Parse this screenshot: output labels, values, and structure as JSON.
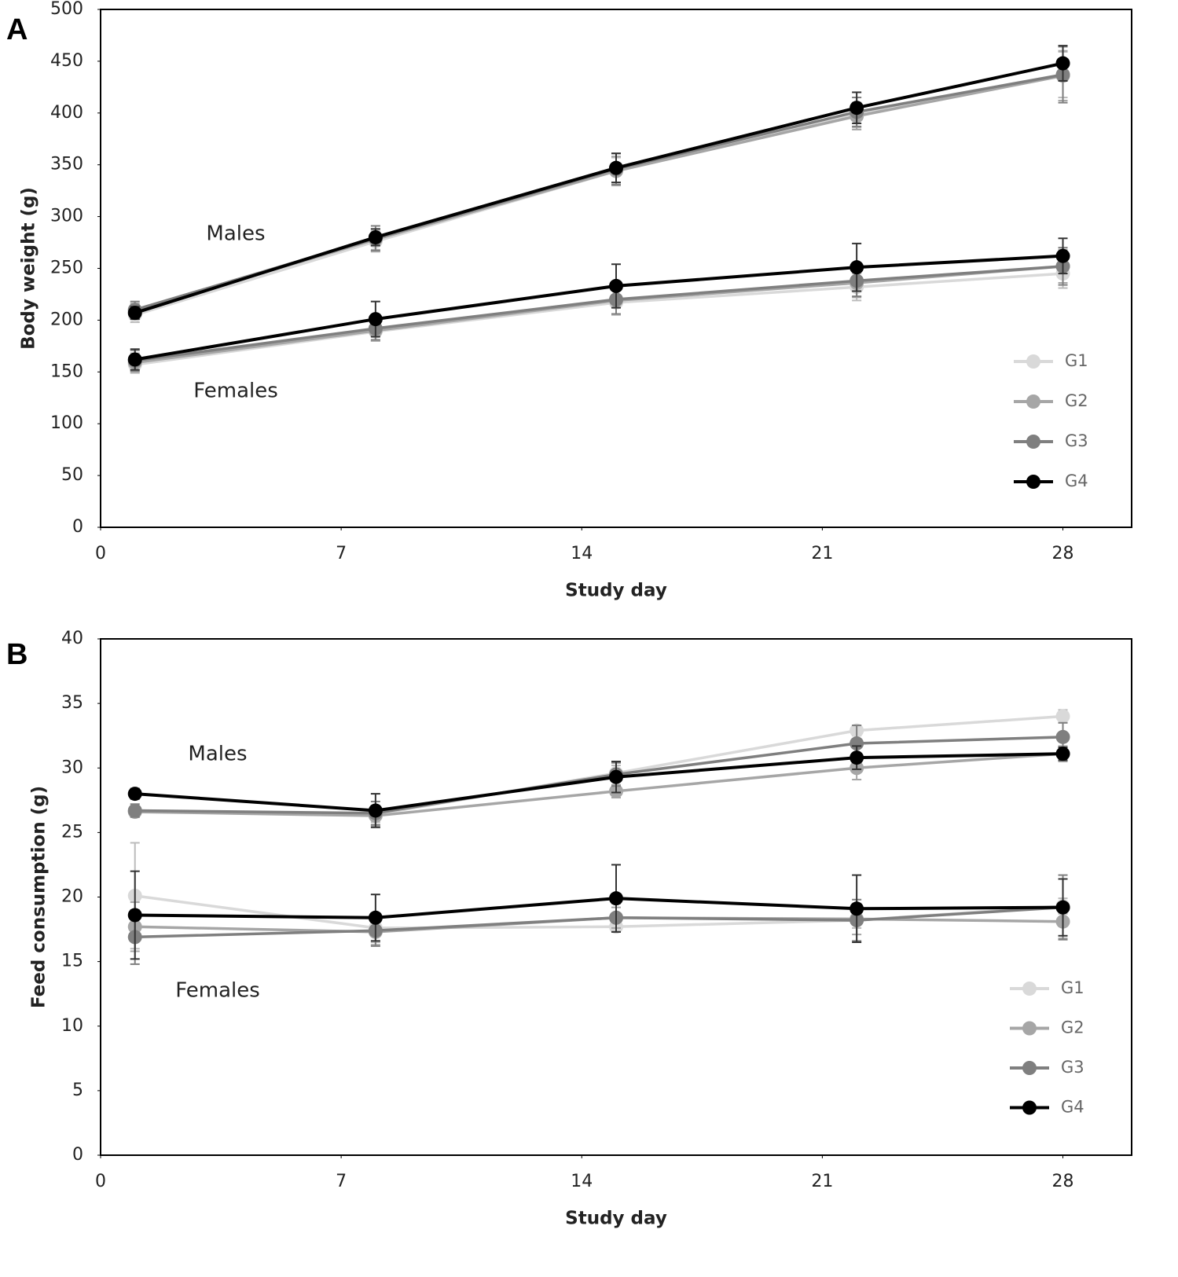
{
  "chart_data": [
    {
      "type": "line",
      "panel_label": "A",
      "y_label": "Body weight (g)",
      "x_label": "Study day",
      "annotations": [
        "Males",
        "Females"
      ],
      "x": [
        1,
        8,
        15,
        22,
        28
      ],
      "xlim": [
        0,
        30
      ],
      "xticks": [
        0,
        7,
        14,
        21,
        28
      ],
      "ylim": [
        0,
        500
      ],
      "yticks": [
        0,
        50,
        100,
        150,
        200,
        250,
        300,
        350,
        400,
        450,
        500
      ],
      "series": [
        {
          "name": "G1",
          "color": "#d9d9d9",
          "values": [
            205,
            276,
            344,
            398,
            437
          ],
          "errors": [
            7,
            10,
            13,
            12,
            22
          ],
          "female_values": [
            157,
            189,
            217,
            232,
            245
          ],
          "female_errors": [
            8,
            9,
            12,
            13,
            14
          ]
        },
        {
          "name": "G2",
          "color": "#a6a6a6",
          "values": [
            209,
            278,
            344,
            397,
            436
          ],
          "errors": [
            7,
            10,
            14,
            13,
            24
          ],
          "female_values": [
            159,
            190,
            219,
            236,
            252
          ],
          "female_errors": [
            9,
            10,
            13,
            14,
            16
          ]
        },
        {
          "name": "G3",
          "color": "#7f7f7f",
          "values": [
            210,
            279,
            346,
            401,
            437
          ],
          "errors": [
            8,
            12,
            15,
            14,
            27
          ],
          "female_values": [
            161,
            192,
            220,
            238,
            252
          ],
          "female_errors": [
            10,
            11,
            14,
            15,
            18
          ]
        },
        {
          "name": "G4",
          "color": "#000000",
          "values": [
            207,
            280,
            347,
            405,
            448
          ],
          "errors": [
            6,
            8,
            14,
            15,
            17
          ],
          "female_values": [
            162,
            201,
            233,
            251,
            262
          ],
          "female_errors": [
            10,
            17,
            21,
            23,
            17
          ]
        }
      ]
    },
    {
      "type": "line",
      "panel_label": "B",
      "y_label": "Feed consumption (g)",
      "x_label": "Study day",
      "annotations": [
        "Males",
        "Females"
      ],
      "x": [
        1,
        8,
        15,
        22,
        28
      ],
      "xlim": [
        0,
        30
      ],
      "xticks": [
        0,
        7,
        14,
        21,
        28
      ],
      "ylim": [
        0,
        40
      ],
      "yticks": [
        0,
        5,
        10,
        15,
        20,
        25,
        30,
        35,
        40
      ],
      "series": [
        {
          "name": "G1",
          "color": "#d9d9d9",
          "values": [
            26.7,
            26.4,
            29.6,
            32.9,
            34.0
          ],
          "errors": [
            0.3,
            0.6,
            0.6,
            0.4,
            0.5
          ],
          "female_values": [
            20.1,
            17.6,
            17.7,
            18.2,
            19.3
          ],
          "female_errors": [
            4.1,
            1.1,
            0.4,
            0.6,
            0.6
          ]
        },
        {
          "name": "G2",
          "color": "#a6a6a6",
          "values": [
            26.6,
            26.3,
            28.2,
            30.0,
            31.1
          ],
          "errors": [
            0.4,
            0.8,
            0.5,
            0.9,
            0.6
          ],
          "female_values": [
            17.7,
            17.3,
            18.4,
            18.3,
            18.1
          ],
          "female_errors": [
            1.9,
            1.0,
            0.8,
            1.2,
            1.3
          ]
        },
        {
          "name": "G3",
          "color": "#7f7f7f",
          "values": [
            26.7,
            26.5,
            29.5,
            31.9,
            32.4
          ],
          "errors": [
            0.5,
            0.9,
            0.9,
            1.4,
            1.1
          ],
          "female_values": [
            16.9,
            17.4,
            18.4,
            18.2,
            19.2
          ],
          "female_errors": [
            2.1,
            1.2,
            1.1,
            1.6,
            2.5
          ]
        },
        {
          "name": "G4",
          "color": "#000000",
          "values": [
            28.0,
            26.7,
            29.3,
            30.8,
            31.1
          ],
          "errors": [
            0.4,
            1.3,
            1.2,
            0.9,
            0.5
          ],
          "female_values": [
            18.6,
            18.4,
            19.9,
            19.1,
            19.2
          ],
          "female_errors": [
            3.4,
            1.8,
            2.6,
            2.6,
            2.2
          ]
        }
      ]
    }
  ]
}
